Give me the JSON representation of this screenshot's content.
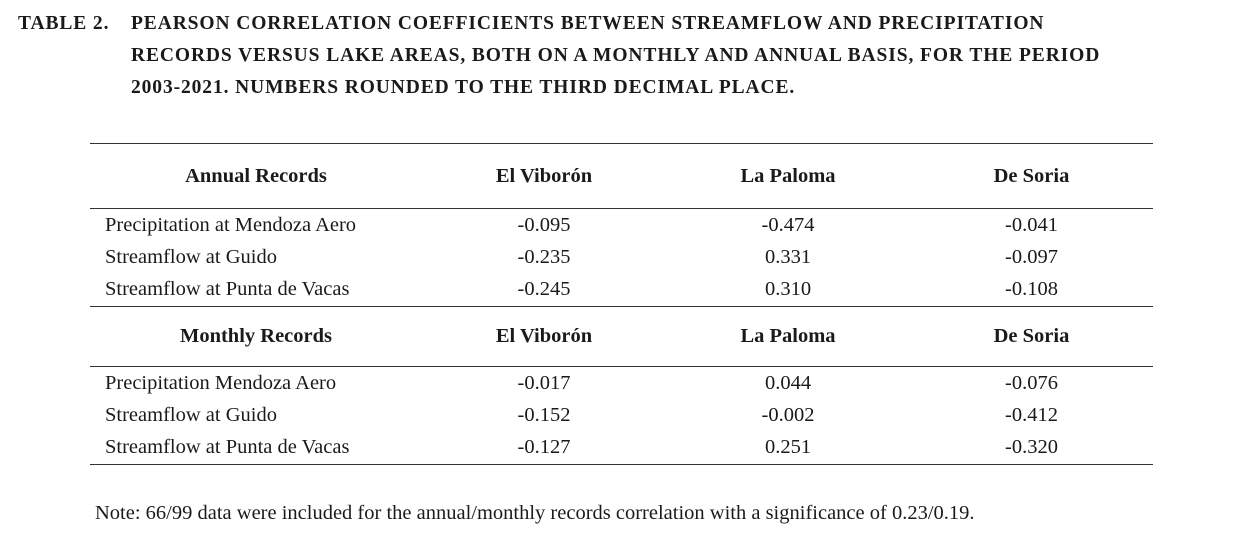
{
  "title": {
    "label": "TABLE 2.",
    "lines": [
      "PEARSON CORRELATION COEFFICIENTS BETWEEN STREAMFLOW AND PRECIPITATION",
      "RECORDS VERSUS LAKE AREAS, BOTH ON A MONTHLY AND ANNUAL BASIS, FOR THE PERIOD",
      "2003-2021. NUMBERS ROUNDED TO THE THIRD DECIMAL PLACE."
    ]
  },
  "table": {
    "sections": [
      {
        "header": [
          "Annual Records",
          "El Viborón",
          "La Paloma",
          "De Soria"
        ],
        "rows": [
          [
            "Precipitation at Mendoza Aero",
            "-0.095",
            "-0.474",
            "-0.041"
          ],
          [
            "Streamflow at Guido",
            "-0.235",
            "0.331",
            "-0.097"
          ],
          [
            "Streamflow at Punta de Vacas",
            "-0.245",
            "0.310",
            "-0.108"
          ]
        ]
      },
      {
        "header": [
          "Monthly Records",
          "El Viborón",
          "La Paloma",
          "De Soria"
        ],
        "rows": [
          [
            "Precipitation Mendoza Aero",
            "-0.017",
            "0.044",
            "-0.076"
          ],
          [
            "Streamflow at Guido",
            "-0.152",
            "-0.002",
            "-0.412"
          ],
          [
            "Streamflow at Punta de Vacas",
            "-0.127",
            "0.251",
            "-0.320"
          ]
        ]
      }
    ]
  },
  "note": "Note: 66/99 data were included for the annual/monthly records correlation with a significance of 0.23/0.19."
}
